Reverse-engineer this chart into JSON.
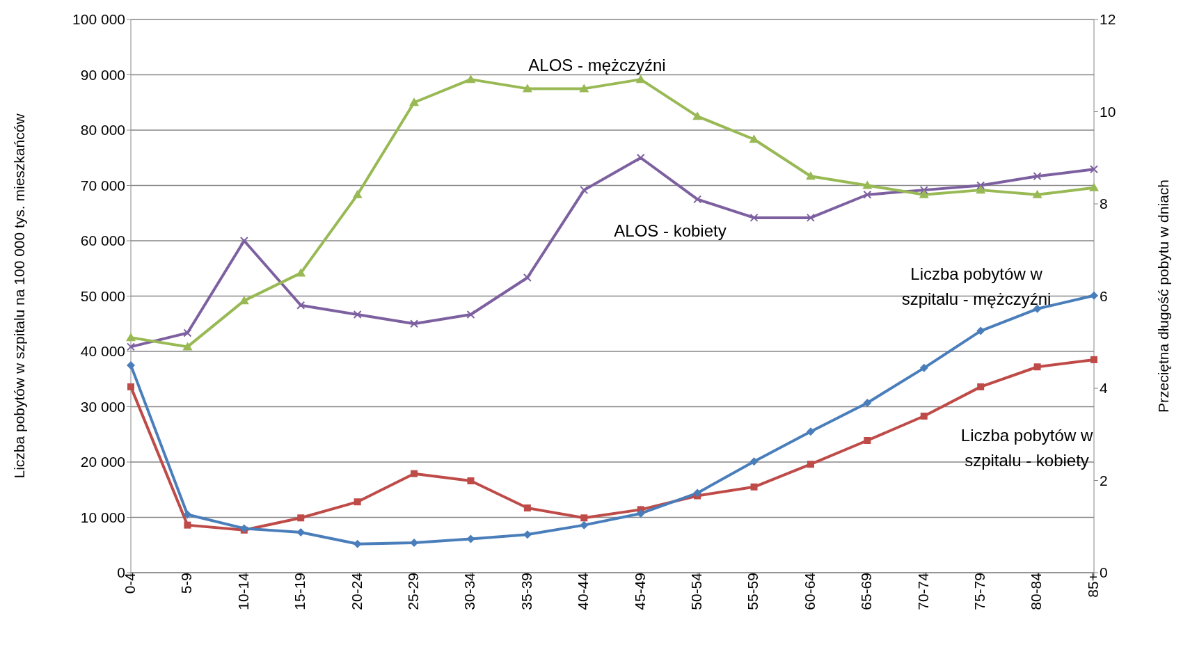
{
  "chart_data": {
    "type": "line",
    "ylabel": "Liczba pobytów w szpitalu na 100 000 tys. mieszkańców",
    "y2label": "Przeciętna długość pobytu w dniach",
    "categories": [
      "0-4",
      "5-9",
      "10-14",
      "15-19",
      "20-24",
      "25-29",
      "30-34",
      "35-39",
      "40-44",
      "45-49",
      "50-54",
      "55-59",
      "60-64",
      "65-69",
      "70-74",
      "75-79",
      "80-84",
      "85+"
    ],
    "series": [
      {
        "name": "Liczba pobytów w szpitalu - mężczyźni",
        "color": "#4a7ebb",
        "marker": "diamond",
        "values": [
          37500,
          10500,
          8000,
          7300,
          5200,
          5400,
          6100,
          6900,
          8600,
          10700,
          14400,
          20100,
          25500,
          30700,
          37000,
          43700,
          47700,
          50100
        ]
      },
      {
        "name": "Liczba pobytów w szpitalu - kobiety",
        "color": "#be4b48",
        "marker": "square",
        "values": [
          33600,
          8600,
          7700,
          9900,
          12800,
          17900,
          16600,
          11700,
          9900,
          11400,
          13900,
          15500,
          19600,
          23900,
          28300,
          33600,
          37200,
          38500
        ]
      },
      {
        "name": "ALOS - mężczyźni",
        "color": "#98b954",
        "marker": "triangle",
        "axis": "y2",
        "values": [
          5.1,
          4.9,
          5.9,
          6.5,
          8.2,
          10.2,
          10.7,
          10.5,
          10.5,
          10.7,
          9.9,
          9.4,
          8.6,
          8.4,
          8.2,
          8.3,
          8.2,
          8.35
        ]
      },
      {
        "name": "ALOS - kobiety",
        "color": "#7d60a0",
        "marker": "cross",
        "axis": "y2",
        "values": [
          4.9,
          5.2,
          7.2,
          5.8,
          5.6,
          5.4,
          5.6,
          6.4,
          8.3,
          9.0,
          8.1,
          7.7,
          7.7,
          8.2,
          8.3,
          8.4,
          8.6,
          8.75
        ]
      }
    ],
    "ylim": [
      0,
      100000
    ],
    "yticks": [
      0,
      {
        "value": 10000,
        "label": "10 000"
      },
      {
        "value": 20000,
        "label": "20 000"
      },
      {
        "value": 30000,
        "label": "30 000"
      },
      {
        "value": 40000,
        "label": "40 000"
      },
      {
        "value": 50000,
        "label": "50 000"
      },
      {
        "value": 60000,
        "label": "60 000"
      },
      {
        "value": 70000,
        "label": "70 000"
      },
      {
        "value": 80000,
        "label": "80 000"
      },
      {
        "value": 90000,
        "label": "90 000"
      },
      {
        "value": 100000,
        "label": "100 000"
      }
    ],
    "y2lim": [
      0,
      12
    ],
    "y2ticks": [
      0,
      2,
      4,
      6,
      8,
      10,
      12
    ],
    "grid": "y",
    "legend": false,
    "line_style": "solid"
  }
}
